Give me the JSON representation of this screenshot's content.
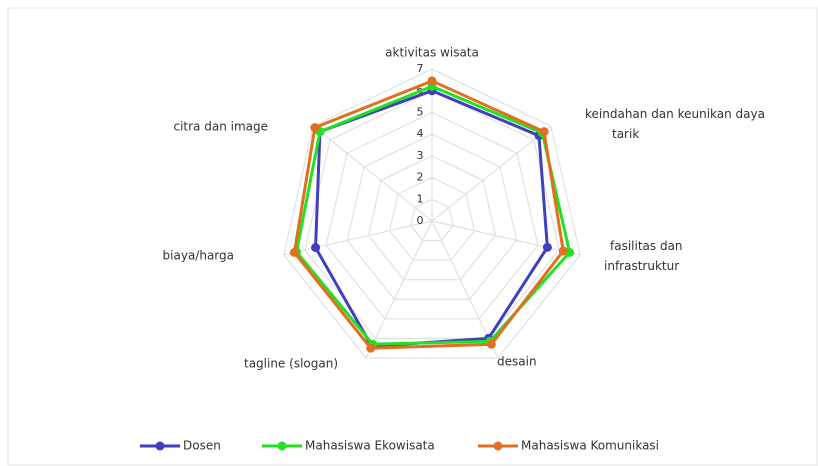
{
  "chart_data": {
    "type": "radar",
    "categories": [
      "aktivitas wisata",
      "keindahan dan keunikan daya tarik",
      "fasilitas dan infrastruktur",
      "desain",
      "tagline (slogan)",
      "biaya/harga",
      "citra dan image"
    ],
    "ylim": [
      0,
      7
    ],
    "yticks": [
      0,
      1,
      2,
      3,
      4,
      5,
      6,
      7
    ],
    "grid": true,
    "legend": "bottom",
    "series": [
      {
        "name": "Dosen",
        "color": "#3f3fbf",
        "values": [
          6.0,
          6.3,
          5.45,
          6.0,
          6.4,
          5.5,
          6.6
        ]
      },
      {
        "name": "Mahasiswa Ekowisata",
        "color": "#22e022",
        "values": [
          6.2,
          6.5,
          6.5,
          6.15,
          6.3,
          6.4,
          6.6
        ]
      },
      {
        "name": "Mahasiswa Komunikasi",
        "color": "#e07020",
        "values": [
          6.45,
          6.6,
          6.2,
          6.3,
          6.5,
          6.5,
          6.9
        ]
      }
    ]
  }
}
